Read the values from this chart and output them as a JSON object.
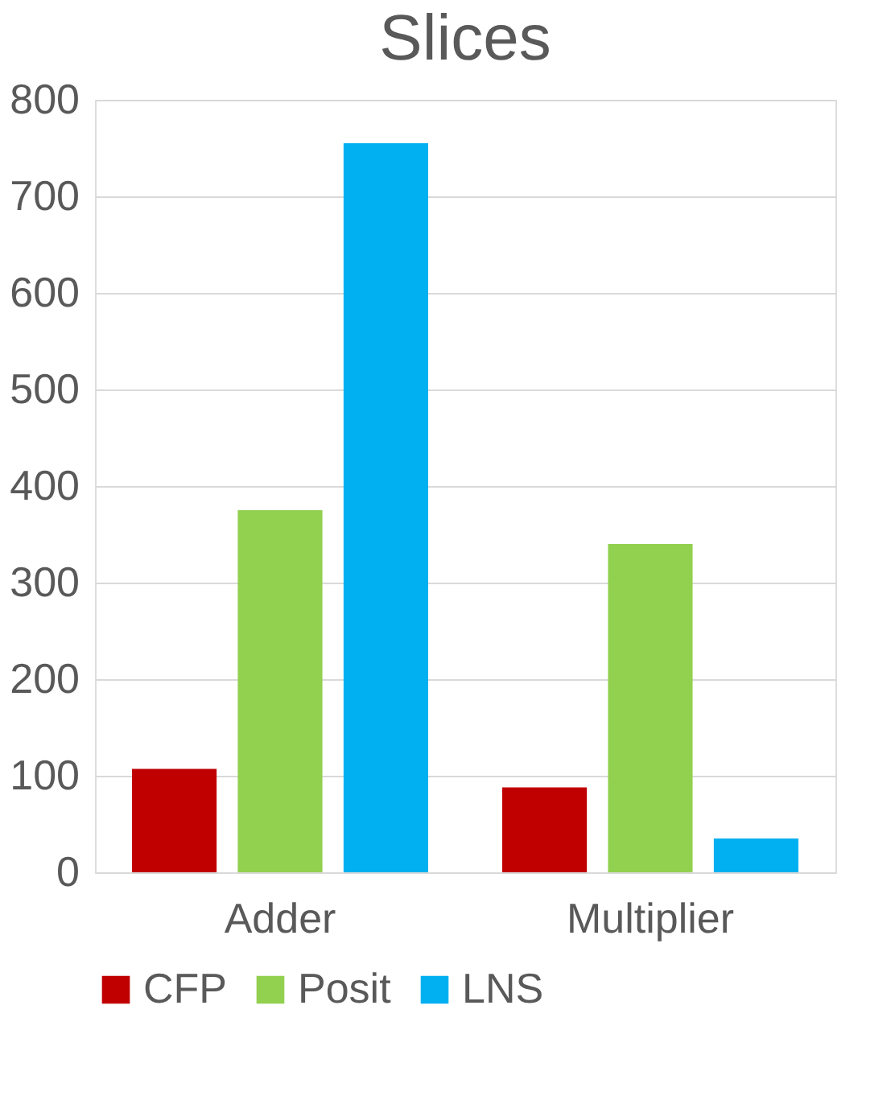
{
  "chart_data": {
    "type": "bar",
    "title": "Slices",
    "categories": [
      "Adder",
      "Multiplier"
    ],
    "series": [
      {
        "name": "CFP",
        "color": "#c00000",
        "values": [
          107,
          88
        ]
      },
      {
        "name": "Posit",
        "color": "#92d050",
        "values": [
          375,
          340
        ]
      },
      {
        "name": "LNS",
        "color": "#00b0f0",
        "values": [
          755,
          35
        ]
      }
    ],
    "ylim": [
      0,
      800
    ],
    "yticks": [
      0,
      100,
      200,
      300,
      400,
      500,
      600,
      700,
      800
    ],
    "grid": "y",
    "legend": "bottom"
  }
}
